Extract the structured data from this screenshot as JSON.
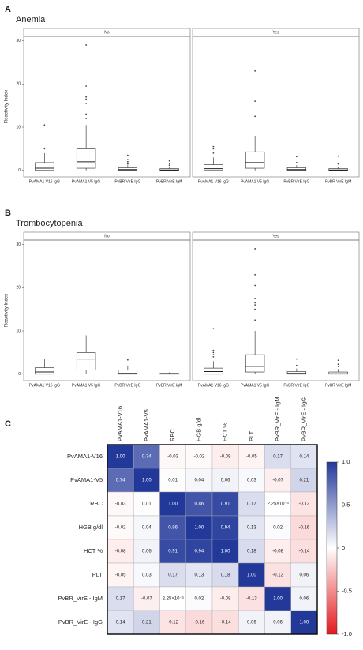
{
  "chart_data": [
    {
      "type": "box",
      "panel": "A",
      "title": "Anemia",
      "ylabel": "Reactivity Index",
      "ylim": [
        -1.5,
        31
      ],
      "yticks": [
        0,
        10,
        20,
        30
      ],
      "facets": [
        {
          "name": "No",
          "categories": [
            "PvAMA1 V16 IgG",
            "PvAMA1 V5 IgG",
            "PvBR VirE IgG",
            "PvBR VirE IgM"
          ],
          "boxes": [
            {
              "low": 0,
              "q1": 0,
              "median": 0.5,
              "q3": 1.8,
              "high": 4,
              "outliers": [
                5,
                10.5
              ]
            },
            {
              "low": 0,
              "q1": 0.5,
              "median": 2,
              "q3": 5,
              "high": 10.5,
              "outliers": [
                12,
                13,
                15.5,
                16.5,
                17,
                19.5,
                29
              ]
            },
            {
              "low": 0,
              "q1": 0,
              "median": 0.2,
              "q3": 0.6,
              "high": 1.2,
              "outliers": [
                1.5,
                2,
                2.5,
                3.5
              ]
            },
            {
              "low": 0,
              "q1": 0,
              "median": 0.1,
              "q3": 0.4,
              "high": 0.8,
              "outliers": [
                1.2,
                1.6,
                2.2
              ]
            }
          ]
        },
        {
          "name": "Yes",
          "categories": [
            "PvAMA1 V16 IgG",
            "PvAMA1 V5 IgG",
            "PvBR VirE IgG",
            "PvBR VirE IgM"
          ],
          "boxes": [
            {
              "low": 0,
              "q1": 0,
              "median": 0.4,
              "q3": 1.3,
              "high": 3,
              "outliers": [
                4,
                5,
                5.5
              ]
            },
            {
              "low": 0,
              "q1": 0.5,
              "median": 1.8,
              "q3": 4.3,
              "high": 8,
              "outliers": [
                12.5,
                16,
                23
              ]
            },
            {
              "low": 0,
              "q1": 0,
              "median": 0.2,
              "q3": 0.6,
              "high": 1.2,
              "outliers": [
                1.8,
                3.2
              ]
            },
            {
              "low": 0,
              "q1": 0,
              "median": 0.1,
              "q3": 0.4,
              "high": 0.9,
              "outliers": [
                1.5,
                3.3
              ]
            }
          ]
        }
      ]
    },
    {
      "type": "box",
      "panel": "B",
      "title": "Trombocytopenia",
      "ylabel": "Reactivity Index",
      "ylim": [
        -1.5,
        31
      ],
      "yticks": [
        0,
        10,
        20,
        30
      ],
      "facets": [
        {
          "name": "No",
          "categories": [
            "PvAMA1 V16 IgG",
            "PvAMA1 V5 IgG",
            "PvBR VirE IgG",
            "PvBR VirE IgM"
          ],
          "boxes": [
            {
              "low": 0,
              "q1": 0,
              "median": 0.5,
              "q3": 1.5,
              "high": 3.5,
              "outliers": []
            },
            {
              "low": 0,
              "q1": 1,
              "median": 3.5,
              "q3": 5,
              "high": 9,
              "outliers": []
            },
            {
              "low": 0,
              "q1": 0,
              "median": 0.2,
              "q3": 1,
              "high": 2,
              "outliers": [
                3.3
              ]
            },
            {
              "low": 0,
              "q1": 0,
              "median": 0.05,
              "q3": 0.2,
              "high": 0.4,
              "outliers": []
            }
          ]
        },
        {
          "name": "Yes",
          "categories": [
            "PvAMA1 V16 IgG",
            "PvAMA1 V5 IgG",
            "PvBR VirE IgG",
            "PvBR VirE IgM"
          ],
          "boxes": [
            {
              "low": 0,
              "q1": 0,
              "median": 0.6,
              "q3": 1.4,
              "high": 3,
              "outliers": [
                4,
                4.5,
                5,
                5.5,
                10.5
              ]
            },
            {
              "low": 0,
              "q1": 0.5,
              "median": 1.8,
              "q3": 4.5,
              "high": 10,
              "outliers": [
                12.5,
                15,
                16,
                16.5,
                17.5,
                20.5,
                23,
                29
              ]
            },
            {
              "low": 0,
              "q1": 0,
              "median": 0.2,
              "q3": 0.6,
              "high": 1.3,
              "outliers": [
                2,
                3.5
              ]
            },
            {
              "low": 0,
              "q1": 0,
              "median": 0.1,
              "q3": 0.5,
              "high": 1.2,
              "outliers": [
                1.8,
                2.3,
                3.2
              ]
            }
          ]
        }
      ]
    },
    {
      "type": "heatmap",
      "panel": "C",
      "columns": [
        "PvAMA1-V16",
        "PvAMA1-V5",
        "RBC",
        "HGB g/dl",
        "HCT %",
        "PLT",
        "PvBR_VirE - IgM",
        "PvBR_VirE - IgG"
      ],
      "rows": [
        "PvAMA1-V16",
        "PvAMA1-V5",
        "RBC",
        "HGB g/dl",
        "HCT %",
        "PLT",
        "PvBR_VirE - IgM",
        "PvBR_VirE - IgG"
      ],
      "values": [
        [
          1,
          0.74,
          -0.03,
          -0.02,
          -0.08,
          -0.05,
          0.17,
          0.14
        ],
        [
          0.74,
          1,
          0.01,
          0.04,
          0.06,
          0.03,
          -0.07,
          0.21
        ],
        [
          -0.03,
          0.01,
          1,
          0.86,
          0.91,
          0.17,
          0.00225,
          -0.12
        ],
        [
          -0.02,
          0.04,
          0.86,
          1,
          0.94,
          0.13,
          0.02,
          -0.16
        ],
        [
          -0.08,
          0.06,
          0.91,
          0.94,
          1,
          0.18,
          -0.08,
          -0.14
        ],
        [
          -0.05,
          0.03,
          0.17,
          0.13,
          0.18,
          1,
          -0.13,
          0.06
        ],
        [
          0.17,
          -0.07,
          0.00225,
          0.02,
          -0.08,
          -0.13,
          1,
          0.06
        ],
        [
          0.14,
          0.21,
          -0.12,
          -0.16,
          -0.14,
          0.06,
          0.06,
          1
        ]
      ],
      "value_labels": [
        [
          "1.00",
          "0.74",
          "-0.03",
          "-0.02",
          "-0.08",
          "-0.05",
          "0.17",
          "0.14"
        ],
        [
          "0.74",
          "1.00",
          "0.01",
          "0.04",
          "0.06",
          "0.03",
          "-0.07",
          "0.21"
        ],
        [
          "-0.03",
          "0.01",
          "1.00",
          "0.86",
          "0.91",
          "0.17",
          "2.25×10⁻³",
          "-0.12"
        ],
        [
          "-0.02",
          "0.04",
          "0.86",
          "1.00",
          "0.94",
          "0.13",
          "0.02",
          "-0.16"
        ],
        [
          "-0.08",
          "0.06",
          "0.91",
          "0.94",
          "1.00",
          "0.18",
          "-0.08",
          "-0.14"
        ],
        [
          "-0.05",
          "0.03",
          "0.17",
          "0.13",
          "0.18",
          "1.00",
          "-0.13",
          "0.06"
        ],
        [
          "0.17",
          "-0.07",
          "2.25×10⁻³",
          "0.02",
          "-0.08",
          "-0.13",
          "1.00",
          "0.06"
        ],
        [
          "0.14",
          "0.21",
          "-0.12",
          "-0.16",
          "-0.14",
          "0.06",
          "0.06",
          "1.00"
        ]
      ],
      "clim": [
        -1,
        1
      ],
      "colors": {
        "low": "#e3191c",
        "mid": "#ffffff",
        "high": "#23399a"
      },
      "colorbar_ticks": [
        {
          "value": 1,
          "label": "1.0"
        },
        0.5,
        0,
        -0.5,
        {
          "value": -1,
          "label": "-1.0"
        }
      ]
    }
  ]
}
